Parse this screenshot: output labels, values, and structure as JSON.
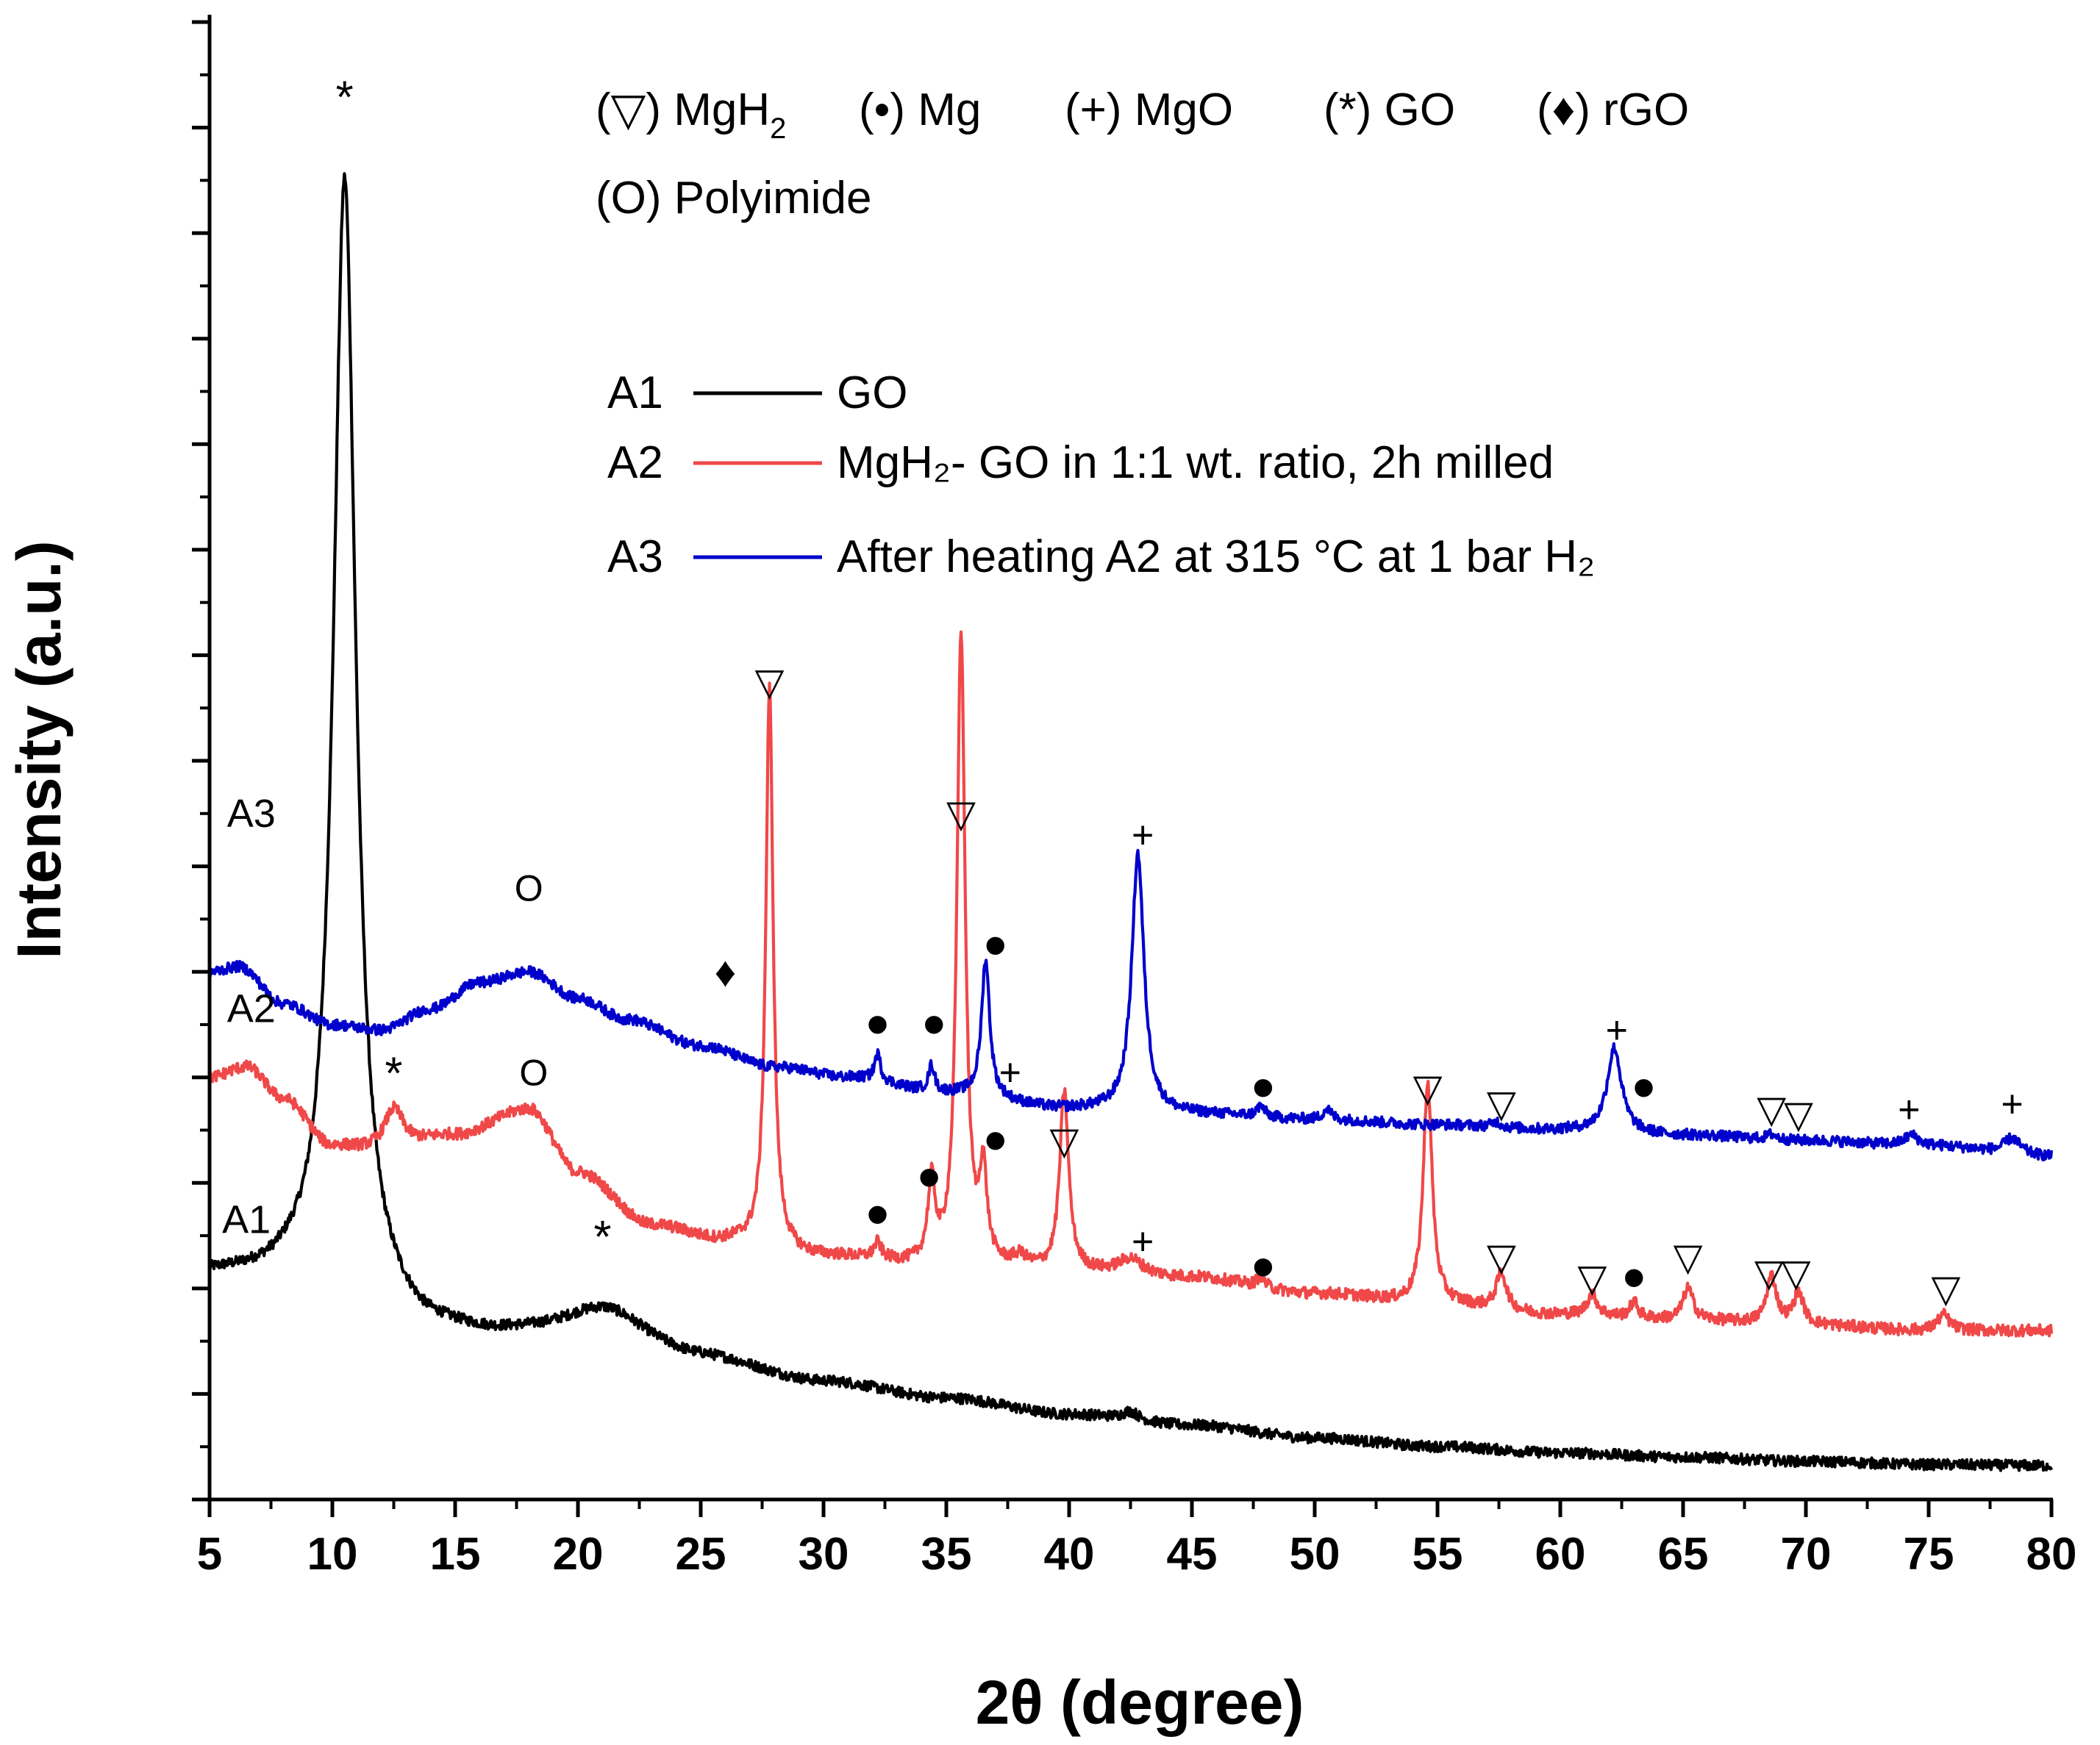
{
  "chart_data": {
    "type": "line",
    "xlabel": "2θ (degree)",
    "ylabel": "Intensity (a.u.)",
    "xlim": [
      5,
      80
    ],
    "ylim": [
      0,
      14
    ],
    "x_ticks": [
      "5",
      "10",
      "15",
      "20",
      "25",
      "30",
      "35",
      "40",
      "45",
      "50",
      "55",
      "60",
      "65",
      "70",
      "75",
      "80"
    ],
    "phase_key": [
      {
        "symbol": "(▽)",
        "name": "MgH",
        "sub": "2"
      },
      {
        "symbol": "(•)",
        "name": "Mg",
        "sub": ""
      },
      {
        "symbol": "(+)",
        "name": "MgO",
        "sub": ""
      },
      {
        "symbol": "(*)",
        "name": "GO",
        "sub": ""
      },
      {
        "symbol": "(♦)",
        "name": "rGO",
        "sub": ""
      },
      {
        "symbol": "(O)",
        "name": "Polyimide",
        "sub": ""
      }
    ],
    "legend": [
      {
        "id": "A1",
        "label": " GO",
        "color": "#000000"
      },
      {
        "id": "A2",
        "label": "MgH₂- GO in 1:1 wt. ratio, 2h milled",
        "color": "#f04848"
      },
      {
        "id": "A3",
        "label": "After heating A2 at 315 °C at 1 bar H₂",
        "color": "#0000cc"
      }
    ],
    "series": [
      {
        "name": "A1",
        "color": "#000000",
        "baseline": [
          [
            5,
            2.1
          ],
          [
            8,
            2.05
          ],
          [
            10,
            1.9
          ],
          [
            12,
            1.7
          ],
          [
            14,
            1.55
          ],
          [
            17,
            1.5
          ],
          [
            21,
            1.45
          ],
          [
            25,
            1.3
          ],
          [
            30,
            1.1
          ],
          [
            35,
            0.95
          ],
          [
            40,
            0.8
          ],
          [
            45,
            0.7
          ],
          [
            50,
            0.58
          ],
          [
            55,
            0.5
          ],
          [
            60,
            0.44
          ],
          [
            65,
            0.4
          ],
          [
            70,
            0.36
          ],
          [
            75,
            0.33
          ],
          [
            80,
            0.32
          ]
        ],
        "peaks": [
          [
            10.5,
            10.65,
            0.55
          ],
          [
            21,
            0.35,
            2.2
          ],
          [
            42.5,
            0.08,
            0.4
          ]
        ],
        "noise": 0.05
      },
      {
        "name": "A2",
        "color": "#f04848",
        "baseline": [
          [
            5,
            4.0
          ],
          [
            6.5,
            4.1
          ],
          [
            8,
            3.8
          ],
          [
            10,
            3.35
          ],
          [
            12,
            3.3
          ],
          [
            15,
            3.45
          ],
          [
            18,
            3.7
          ],
          [
            20,
            3.1
          ],
          [
            23,
            2.6
          ],
          [
            26,
            2.45
          ],
          [
            30,
            2.3
          ],
          [
            35,
            2.2
          ],
          [
            40,
            2.15
          ],
          [
            45,
            2.1
          ],
          [
            50,
            1.95
          ],
          [
            55,
            1.85
          ],
          [
            60,
            1.75
          ],
          [
            65,
            1.7
          ],
          [
            70,
            1.65
          ],
          [
            75,
            1.6
          ],
          [
            80,
            1.6
          ]
        ],
        "peaks": [
          [
            12.5,
            0.4,
            0.5
          ],
          [
            27.8,
            5.3,
            0.18
          ],
          [
            32.2,
            0.15,
            0.18
          ],
          [
            34.4,
            0.75,
            0.18
          ],
          [
            35.6,
            6.0,
            0.2
          ],
          [
            36.5,
            0.85,
            0.18
          ],
          [
            38,
            0.1,
            0.35
          ],
          [
            39.8,
            1.7,
            0.22
          ],
          [
            42.5,
            0.15,
            0.6
          ],
          [
            47.8,
            0.1,
            0.18
          ],
          [
            54.6,
            2.1,
            0.22
          ],
          [
            57.6,
            0.35,
            0.25
          ],
          [
            61.3,
            0.2,
            0.25
          ],
          [
            63,
            0.15,
            0.2
          ],
          [
            65.2,
            0.3,
            0.25
          ],
          [
            68.6,
            0.45,
            0.25
          ],
          [
            69.7,
            0.3,
            0.25
          ],
          [
            75.6,
            0.15,
            0.3
          ]
        ],
        "noise": 0.055
      },
      {
        "name": "A3",
        "color": "#0000cc",
        "baseline": [
          [
            5,
            5.0
          ],
          [
            6.2,
            5.05
          ],
          [
            8,
            4.7
          ],
          [
            10,
            4.5
          ],
          [
            12,
            4.45
          ],
          [
            14,
            4.65
          ],
          [
            16,
            4.9
          ],
          [
            18,
            5.0
          ],
          [
            20,
            4.75
          ],
          [
            22,
            4.55
          ],
          [
            25,
            4.3
          ],
          [
            28,
            4.1
          ],
          [
            31,
            4.0
          ],
          [
            35,
            3.85
          ],
          [
            40,
            3.7
          ],
          [
            45,
            3.65
          ],
          [
            50,
            3.6
          ],
          [
            55,
            3.55
          ],
          [
            60,
            3.5
          ],
          [
            65,
            3.45
          ],
          [
            70,
            3.4
          ],
          [
            75,
            3.35
          ],
          [
            80,
            3.25
          ]
        ],
        "peaks": [
          [
            32.2,
            0.25,
            0.15
          ],
          [
            34.4,
            0.25,
            0.15
          ],
          [
            36.6,
            1.3,
            0.2
          ],
          [
            42.8,
            2.45,
            0.3
          ],
          [
            47.8,
            0.1,
            0.2
          ],
          [
            50.5,
            0.1,
            0.2
          ],
          [
            57.4,
            0.05,
            0.2
          ],
          [
            62.2,
            0.8,
            0.35
          ],
          [
            68.6,
            0.05,
            0.25
          ],
          [
            74.3,
            0.1,
            0.35
          ],
          [
            78.4,
            0.15,
            0.4
          ]
        ],
        "noise": 0.05
      }
    ],
    "curve_labels": [
      {
        "text": "A1",
        "x": 6.5,
        "y": 2.65
      },
      {
        "text": "A2",
        "x": 6.7,
        "y": 4.65
      },
      {
        "text": "A3",
        "x": 6.7,
        "y": 6.5
      }
    ],
    "annotations": [
      {
        "text": "*",
        "x": 10.5,
        "y": 13.35
      },
      {
        "text": "*",
        "x": 12.5,
        "y": 4.1
      },
      {
        "text": "*",
        "x": 21.0,
        "y": 2.55
      },
      {
        "text": "O",
        "x": 18.0,
        "y": 5.8
      },
      {
        "text": "O",
        "x": 18.2,
        "y": 4.05
      },
      {
        "text": "♦",
        "x": 26.0,
        "y": 5.0
      },
      {
        "text": "▽",
        "x": 27.8,
        "y": 7.75
      },
      {
        "text": "▽",
        "x": 35.6,
        "y": 6.5
      },
      {
        "text": "▽",
        "x": 39.8,
        "y": 3.4
      },
      {
        "text": "▽",
        "x": 54.6,
        "y": 3.9
      },
      {
        "text": "▽",
        "x": 57.6,
        "y": 3.75
      },
      {
        "text": "▽",
        "x": 57.6,
        "y": 2.3
      },
      {
        "text": "▽",
        "x": 61.3,
        "y": 2.1
      },
      {
        "text": "▽",
        "x": 65.2,
        "y": 2.3
      },
      {
        "text": "▽",
        "x": 68.5,
        "y": 2.15
      },
      {
        "text": "▽",
        "x": 69.6,
        "y": 2.15
      },
      {
        "text": "▽",
        "x": 68.6,
        "y": 3.7
      },
      {
        "text": "▽",
        "x": 69.7,
        "y": 3.65
      },
      {
        "text": "▽",
        "x": 75.7,
        "y": 2.0
      },
      {
        "text": "•",
        "x": 32.2,
        "y": 4.5
      },
      {
        "text": "•",
        "x": 34.5,
        "y": 4.5
      },
      {
        "text": "•",
        "x": 37.0,
        "y": 5.25
      },
      {
        "text": "•",
        "x": 32.2,
        "y": 2.7
      },
      {
        "text": "•",
        "x": 34.3,
        "y": 3.05
      },
      {
        "text": "•",
        "x": 37.0,
        "y": 3.4
      },
      {
        "text": "•",
        "x": 47.9,
        "y": 3.9
      },
      {
        "text": "•",
        "x": 47.9,
        "y": 2.2
      },
      {
        "text": "•",
        "x": 63.4,
        "y": 3.9
      },
      {
        "text": "•",
        "x": 63.0,
        "y": 2.1
      },
      {
        "text": "+",
        "x": 43.0,
        "y": 6.3
      },
      {
        "text": "+",
        "x": 37.6,
        "y": 4.05
      },
      {
        "text": "+",
        "x": 43.0,
        "y": 2.45
      },
      {
        "text": "+",
        "x": 62.3,
        "y": 4.45
      },
      {
        "text": "+",
        "x": 74.2,
        "y": 3.7
      },
      {
        "text": "+",
        "x": 78.4,
        "y": 3.75
      }
    ]
  }
}
